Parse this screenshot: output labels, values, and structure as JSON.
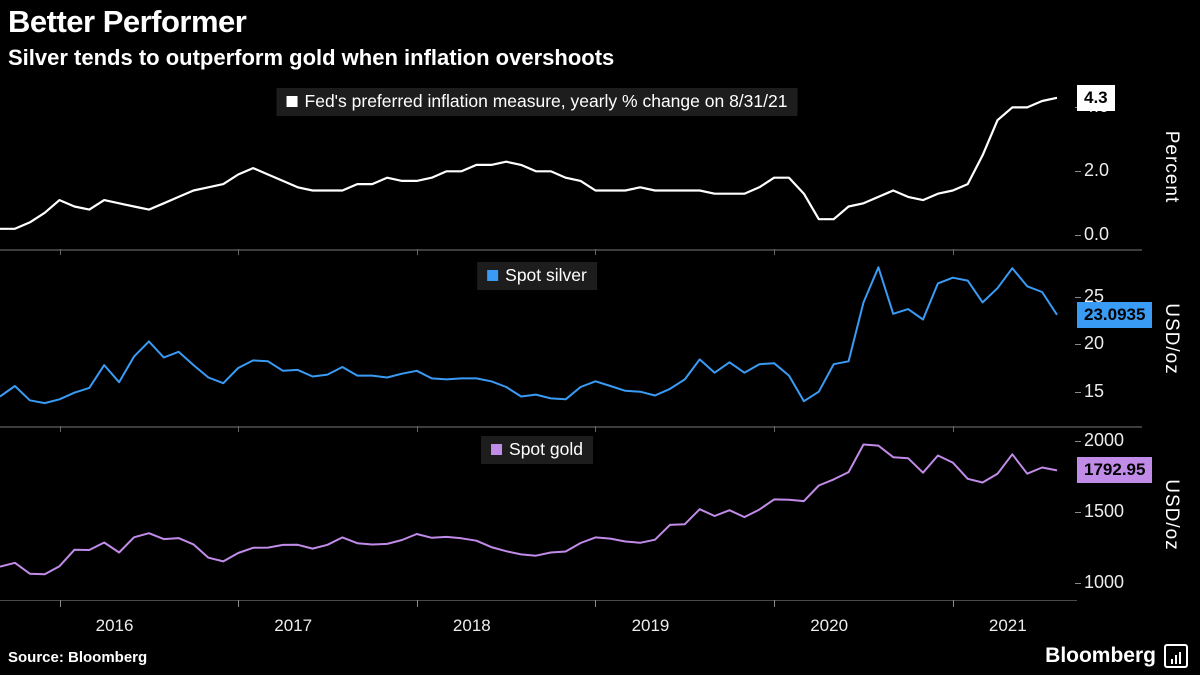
{
  "header": {
    "title": "Better Performer",
    "subtitle": "Silver tends to outperform gold when inflation overshoots"
  },
  "footer": {
    "source": "Source: Bloomberg",
    "logo": "Bloomberg"
  },
  "x_axis": {
    "years": [
      {
        "label": "2016",
        "month_index": 4
      },
      {
        "label": "2017",
        "month_index": 16
      },
      {
        "label": "2018",
        "month_index": 28
      },
      {
        "label": "2019",
        "month_index": 40
      },
      {
        "label": "2020",
        "month_index": 52
      },
      {
        "label": "2021",
        "month_index": 64
      }
    ]
  },
  "chart_data": [
    {
      "type": "line",
      "name": "inflation",
      "legend": "Fed's preferred inflation measure, yearly % change on 8/31/21",
      "unit": "Percent",
      "color": "#ffffff",
      "badge_bg": "#ffffff",
      "badge_fg": "#000000",
      "x_start": "2015-09",
      "x_freq": "monthly",
      "ylim": [
        -0.4,
        4.7
      ],
      "yticks": [
        0,
        2,
        4
      ],
      "ytick_labels": [
        "0.0",
        "2.0",
        "4.0"
      ],
      "last_value": 4.3,
      "last_value_label": "4.3",
      "values": [
        0.2,
        0.2,
        0.4,
        0.7,
        1.1,
        0.9,
        0.8,
        1.1,
        1.0,
        0.9,
        0.8,
        1.0,
        1.2,
        1.4,
        1.5,
        1.6,
        1.9,
        2.1,
        1.9,
        1.7,
        1.5,
        1.4,
        1.4,
        1.4,
        1.6,
        1.6,
        1.8,
        1.7,
        1.7,
        1.8,
        2.0,
        2.0,
        2.2,
        2.2,
        2.3,
        2.2,
        2.0,
        2.0,
        1.8,
        1.7,
        1.4,
        1.4,
        1.4,
        1.5,
        1.4,
        1.4,
        1.4,
        1.4,
        1.3,
        1.3,
        1.3,
        1.5,
        1.8,
        1.8,
        1.3,
        0.5,
        0.5,
        0.9,
        1.0,
        1.2,
        1.4,
        1.2,
        1.1,
        1.3,
        1.4,
        1.6,
        2.5,
        3.6,
        4.0,
        4.0,
        4.2,
        4.3
      ]
    },
    {
      "type": "line",
      "name": "spot-silver",
      "legend": "Spot silver",
      "unit": "USD/oz",
      "color": "#3a9bf5",
      "badge_bg": "#3a9bf5",
      "badge_fg": "#000000",
      "x_start": "2015-09",
      "x_freq": "monthly",
      "ylim": [
        11.5,
        29.6
      ],
      "yticks": [
        15,
        20,
        25
      ],
      "ytick_labels": [
        "15",
        "20",
        "25"
      ],
      "last_value": 23.0935,
      "last_value_label": "23.0935",
      "values": [
        14.5,
        15.6,
        14.1,
        13.8,
        14.2,
        14.9,
        15.4,
        17.8,
        16.0,
        18.7,
        20.3,
        18.6,
        19.2,
        17.8,
        16.5,
        15.9,
        17.5,
        18.3,
        18.2,
        17.2,
        17.3,
        16.6,
        16.8,
        17.6,
        16.7,
        16.7,
        16.5,
        16.9,
        17.2,
        16.4,
        16.3,
        16.4,
        16.4,
        16.1,
        15.5,
        14.5,
        14.7,
        14.3,
        14.2,
        15.5,
        16.1,
        15.6,
        15.1,
        15.0,
        14.6,
        15.3,
        16.3,
        18.4,
        17.0,
        18.1,
        17.0,
        17.9,
        18.0,
        16.7,
        14.0,
        15.0,
        17.9,
        18.2,
        24.4,
        28.1,
        23.2,
        23.7,
        22.6,
        26.4,
        27.0,
        26.7,
        24.4,
        25.9,
        28.0,
        26.1,
        25.5,
        23.0935
      ]
    },
    {
      "type": "line",
      "name": "spot-gold",
      "legend": "Spot gold",
      "unit": "USD/oz",
      "color": "#c18be8",
      "badge_bg": "#c18be8",
      "badge_fg": "#000000",
      "x_start": "2015-09",
      "x_freq": "monthly",
      "ylim": [
        880,
        2085
      ],
      "yticks": [
        1000,
        1500,
        2000
      ],
      "ytick_labels": [
        "1000",
        "1500",
        "2000"
      ],
      "last_value": 1792.95,
      "last_value_label": "1792.95",
      "values": [
        1115,
        1142,
        1065,
        1061,
        1118,
        1234,
        1232,
        1285,
        1215,
        1322,
        1351,
        1309,
        1316,
        1272,
        1178,
        1152,
        1211,
        1248,
        1249,
        1268,
        1269,
        1242,
        1269,
        1321,
        1280,
        1271,
        1275,
        1303,
        1345,
        1318,
        1325,
        1315,
        1298,
        1253,
        1224,
        1201,
        1192,
        1215,
        1222,
        1282,
        1321,
        1313,
        1292,
        1283,
        1305,
        1409,
        1414,
        1520,
        1472,
        1513,
        1464,
        1517,
        1589,
        1586,
        1577,
        1687,
        1730,
        1781,
        1976,
        1968,
        1886,
        1879,
        1777,
        1898,
        1848,
        1734,
        1708,
        1769,
        1907,
        1770,
        1814,
        1792.95
      ]
    }
  ]
}
